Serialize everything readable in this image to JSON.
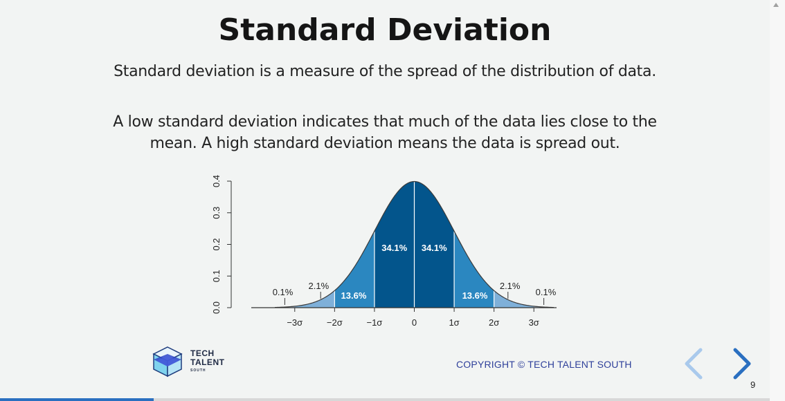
{
  "slide": {
    "title": "Standard Deviation",
    "paragraph1": "Standard deviation is a measure of the spread of the distribution of data.",
    "paragraph2_line1": "A low standard deviation indicates that much of the data lies close to the",
    "paragraph2_line2": "mean. A high standard deviation means the data is spread out."
  },
  "chart_data": {
    "type": "area",
    "y_ticks": [
      "0.0",
      "0.1",
      "0.2",
      "0.3",
      "0.4"
    ],
    "x_ticks": [
      "−3σ",
      "−2σ",
      "−1σ",
      "0",
      "1σ",
      "2σ",
      "3σ"
    ],
    "ylim": [
      0,
      0.4
    ],
    "xlim": [
      -3.5,
      3.5
    ],
    "regions": [
      {
        "label": "0.1%",
        "from": -3.5,
        "to": -3,
        "color": "#aec9e3"
      },
      {
        "label": "2.1%",
        "from": -3,
        "to": -2,
        "color": "#7fb0d9"
      },
      {
        "label": "13.6%",
        "from": -2,
        "to": -1,
        "color": "#2b87c0"
      },
      {
        "label": "34.1%",
        "from": -1,
        "to": 0,
        "color": "#03558c"
      },
      {
        "label": "34.1%",
        "from": 0,
        "to": 1,
        "color": "#03558c"
      },
      {
        "label": "13.6%",
        "from": 1,
        "to": 2,
        "color": "#2b87c0"
      },
      {
        "label": "2.1%",
        "from": 2,
        "to": 3,
        "color": "#7fb0d9"
      },
      {
        "label": "0.1%",
        "from": 3,
        "to": 3.5,
        "color": "#aec9e3"
      }
    ]
  },
  "logo": {
    "line1": "TECH",
    "line2": "TALENT",
    "line3": "SOUTH"
  },
  "footer": {
    "copyright": "COPYRIGHT © TECH TALENT SOUTH",
    "page_number": "9"
  },
  "nav": {
    "prev_icon": "chevron-left-icon",
    "next_icon": "chevron-right-icon"
  },
  "progress": {
    "fraction": 0.2
  },
  "colors": {
    "title": "#151515",
    "copyright": "#2e3f9a",
    "nav_prev": "#a9c9ec",
    "nav_next": "#2a6fc0",
    "progress": "#2a6fc0"
  }
}
